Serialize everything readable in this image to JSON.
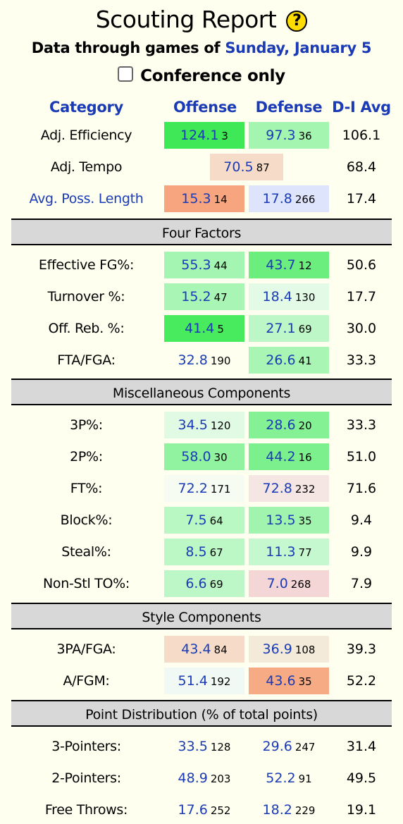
{
  "header": {
    "title": "Scouting Report",
    "help_glyph": "?",
    "subtitle_prefix": "Data through games of ",
    "subtitle_date": "Sunday, January 5",
    "conference_label": "Conference only"
  },
  "columns": {
    "category": "Category",
    "offense": "Offense",
    "defense": "Defense",
    "avg": "D-I Avg"
  },
  "top_rows": [
    {
      "label": "Adj. Efficiency",
      "off": {
        "val": "124.1",
        "rank": "3",
        "bg": "#3fe856"
      },
      "def": {
        "val": "97.3",
        "rank": "36",
        "bg": "#a3f5b0"
      },
      "avg": "106.1"
    },
    {
      "label": "Adj. Tempo",
      "tempo": {
        "val": "70.5",
        "rank": "87",
        "bg": "#f6dcc8"
      },
      "avg": "68.4"
    },
    {
      "label": "Avg. Poss. Length",
      "link": true,
      "off": {
        "val": "15.3",
        "rank": "14",
        "bg": "#f7a57e"
      },
      "def": {
        "val": "17.8",
        "rank": "266",
        "bg": "#dde4fb"
      },
      "avg": "17.4"
    }
  ],
  "sections": [
    {
      "title": "Four Factors",
      "rows": [
        {
          "label": "Effective FG%:",
          "off": {
            "val": "55.3",
            "rank": "44",
            "bg": "#a5f5b2"
          },
          "def": {
            "val": "43.7",
            "rank": "12",
            "bg": "#6cee7f"
          },
          "avg": "50.6"
        },
        {
          "label": "Turnover %:",
          "off": {
            "val": "15.2",
            "rank": "47",
            "bg": "#a8f5b5"
          },
          "def": {
            "val": "18.4",
            "rank": "130",
            "bg": "#e2fae6"
          },
          "avg": "17.7"
        },
        {
          "label": "Off. Reb. %:",
          "off": {
            "val": "41.4",
            "rank": "5",
            "bg": "#48ea5e"
          },
          "def": {
            "val": "27.1",
            "rank": "69",
            "bg": "#bdf7c7"
          },
          "avg": "30.0"
        },
        {
          "label": "FTA/FGA:",
          "off": {
            "val": "32.8",
            "rank": "190",
            "bg": "#fffff0"
          },
          "def": {
            "val": "26.6",
            "rank": "41",
            "bg": "#a8f5b4"
          },
          "avg": "33.3"
        }
      ]
    },
    {
      "title": "Miscellaneous Components",
      "rows": [
        {
          "label": "3P%:",
          "off": {
            "val": "34.5",
            "rank": "120",
            "bg": "#e0fae4"
          },
          "def": {
            "val": "28.6",
            "rank": "20",
            "bg": "#84f194"
          },
          "avg": "33.3"
        },
        {
          "label": "2P%:",
          "off": {
            "val": "58.0",
            "rank": "30",
            "bg": "#91f3a0"
          },
          "def": {
            "val": "44.2",
            "rank": "16",
            "bg": "#7bf08c"
          },
          "avg": "51.0"
        },
        {
          "label": "FT%:",
          "off": {
            "val": "72.2",
            "rank": "171",
            "bg": "#f6fcf1"
          },
          "def": {
            "val": "72.8",
            "rank": "232",
            "bg": "#f5e6e4"
          },
          "avg": "71.6"
        },
        {
          "label": "Block%:",
          "off": {
            "val": "7.5",
            "rank": "64",
            "bg": "#b9f7c3"
          },
          "def": {
            "val": "13.5",
            "rank": "35",
            "bg": "#a1f4ae"
          },
          "avg": "9.4"
        },
        {
          "label": "Steal%:",
          "off": {
            "val": "8.5",
            "rank": "67",
            "bg": "#bcf7c6"
          },
          "def": {
            "val": "11.3",
            "rank": "77",
            "bg": "#c6f8cf"
          },
          "avg": "9.9"
        },
        {
          "label": "Non-Stl TO%:",
          "off": {
            "val": "6.6",
            "rank": "69",
            "bg": "#bdf7c7"
          },
          "def": {
            "val": "7.0",
            "rank": "268",
            "bg": "#f4d6d6"
          },
          "avg": "7.9"
        }
      ]
    },
    {
      "title": "Style Components",
      "rows": [
        {
          "label": "3PA/FGA:",
          "off": {
            "val": "43.4",
            "rank": "84",
            "bg": "#f6dcc8"
          },
          "def": {
            "val": "36.9",
            "rank": "108",
            "bg": "#f4ead9"
          },
          "avg": "39.3"
        },
        {
          "label": "A/FGM:",
          "off": {
            "val": "51.4",
            "rank": "192",
            "bg": "#f0f9f3"
          },
          "def": {
            "val": "43.6",
            "rank": "35",
            "bg": "#f7ab84"
          },
          "avg": "52.2"
        }
      ]
    },
    {
      "title": "Point Distribution (% of total points)",
      "rows": [
        {
          "label": "3-Pointers:",
          "off": {
            "val": "33.5",
            "rank": "128",
            "bg": "#fffff0"
          },
          "def": {
            "val": "29.6",
            "rank": "247",
            "bg": "#fffff0"
          },
          "avg": "31.4"
        },
        {
          "label": "2-Pointers:",
          "off": {
            "val": "48.9",
            "rank": "203",
            "bg": "#fffff0"
          },
          "def": {
            "val": "52.2",
            "rank": "91",
            "bg": "#fffff0"
          },
          "avg": "49.5"
        },
        {
          "label": "Free Throws:",
          "off": {
            "val": "17.6",
            "rank": "252",
            "bg": "#fffff0"
          },
          "def": {
            "val": "18.2",
            "rank": "229",
            "bg": "#fffff0"
          },
          "avg": "19.1"
        }
      ]
    }
  ]
}
